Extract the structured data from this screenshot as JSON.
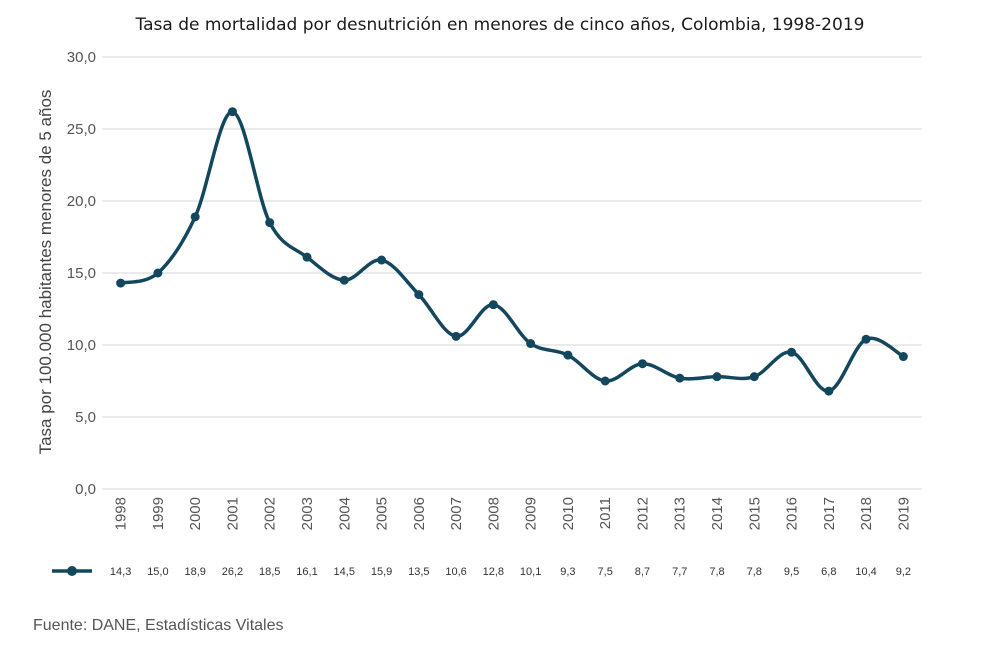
{
  "chart_data": {
    "type": "line",
    "title": "Tasa de mortalidad por desnutrición en menores de cinco años, Colombia, 1998-2019",
    "ylabel": "Tasa por 100.000 habitantes menores de 5 años",
    "xlabel": "",
    "ylim": [
      0,
      30
    ],
    "yticks": [
      "0,0",
      "5,0",
      "10,0",
      "15,0",
      "20,0",
      "25,0",
      "30,0"
    ],
    "grid": true,
    "legend": "data table below axis",
    "categories": [
      "1998",
      "1999",
      "2000",
      "2001",
      "2002",
      "2003",
      "2004",
      "2005",
      "2006",
      "2007",
      "2008",
      "2009",
      "2010",
      "2011",
      "2012",
      "2013",
      "2014",
      "2015",
      "2016",
      "2017",
      "2018",
      "2019"
    ],
    "series": [
      {
        "color": "#13475e",
        "values": [
          14.3,
          15.0,
          18.9,
          26.2,
          18.5,
          16.1,
          14.5,
          15.9,
          13.5,
          10.6,
          12.8,
          10.1,
          9.3,
          7.5,
          8.7,
          7.7,
          7.8,
          7.8,
          9.5,
          6.8,
          10.4,
          9.2
        ],
        "labels": [
          "14,3",
          "15,0",
          "18,9",
          "26,2",
          "18,5",
          "16,1",
          "14,5",
          "15,9",
          "13,5",
          "10,6",
          "12,8",
          "10,1",
          "9,3",
          "7,5",
          "8,7",
          "7,7",
          "7,8",
          "7,8",
          "9,5",
          "6,8",
          "10,4",
          "9,2"
        ]
      }
    ],
    "source": "Fuente: DANE, Estadísticas Vitales"
  }
}
